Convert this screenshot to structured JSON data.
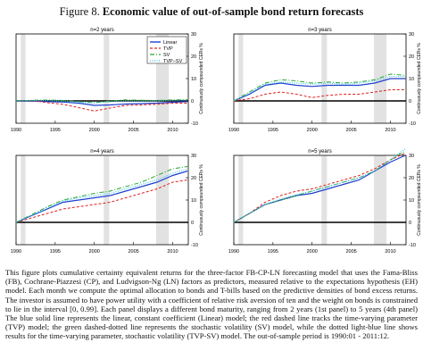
{
  "figure": {
    "label": "Figure 8.",
    "title": "Economic value of out-of-sample bond return forecasts"
  },
  "caption": "This figure plots cumulative certainty equivalent returns for the three-factor FB-CP-LN forecasting model that uses the Fama-Bliss (FB), Cochrane-Piazzesi (CP), and Ludvigson-Ng (LN) factors as predictors, measured relative to the expectations hypothesis (EH) model. Each month we compute the optimal allocation to bonds and T-bills based on the predictive densities of bond excess returns. The investor is assumed to have power utility with a coefficient of relative risk aversion of ten and the weight on bonds is constrained to lie in the interval [0, 0.99]. Each panel displays a different bond maturity, ranging from 2 years (1st panel) to 5 years (4th panel) The blue solid line represents the linear, constant coefficient (Linear) model; the red dashed line tracks the time-varying parameter (TVP) model; the green dashed-dotted line represents the stochastic volatility (SV) model, while the dotted light-blue line shows results for the time-varying parameter, stochastic volatility (TVP-SV) model. The out-of-sample period is 1990:01 - 2011:12.",
  "legend": [
    "Linear",
    "TVP",
    "SV",
    "TVP−SV"
  ],
  "colors": {
    "Linear": "#1f3fd0",
    "TVP": "#e0201e",
    "SV": "#2aa530",
    "TVP-SV": "#33c4e8",
    "recession": "#e2e2e2"
  },
  "chart_data": [
    {
      "type": "line",
      "title": "n=2 years",
      "ylabel": "Continuously compounded CERs %",
      "xlim": [
        1990,
        2012
      ],
      "ylim": [
        -10,
        30
      ],
      "xticks": [
        1990,
        1995,
        2000,
        2005,
        2010
      ],
      "xtick_labels": [
        "1990",
        "1995",
        "2000",
        "2005",
        "2010"
      ],
      "yticks": [
        -10,
        0,
        10,
        20,
        30
      ],
      "ytick_labels": [
        "-10",
        "0",
        "10",
        "20",
        "30"
      ],
      "recessions": [
        [
          1990.6,
          1991.2
        ],
        [
          2001.2,
          2001.9
        ],
        [
          2007.9,
          2009.5
        ]
      ],
      "x": [
        1990,
        1992,
        1994,
        1996,
        1998,
        2000,
        2002,
        2004,
        2006,
        2008,
        2010,
        2011.9
      ],
      "series": [
        {
          "name": "Linear",
          "values": [
            0,
            0,
            -0.3,
            -0.5,
            -1,
            -2,
            -1.8,
            -1.4,
            -1.2,
            -1,
            -0.6,
            -0.3
          ]
        },
        {
          "name": "TVP",
          "values": [
            0,
            0.2,
            -0.8,
            -1.5,
            -3,
            -4.5,
            -3.2,
            -2,
            -1.8,
            -1.5,
            -1,
            -1
          ]
        },
        {
          "name": "SV",
          "values": [
            0,
            0.3,
            0.4,
            0.2,
            -0.3,
            -0.8,
            0,
            0.5,
            0.3,
            0.2,
            0.5,
            0.5
          ]
        },
        {
          "name": "TVP-SV",
          "values": [
            0,
            0.2,
            0.2,
            -0.2,
            -0.5,
            -1,
            -0.4,
            0,
            -0.2,
            0,
            0.3,
            0.4
          ]
        }
      ]
    },
    {
      "type": "line",
      "title": "n=3 years",
      "ylabel": "Continuously compounded CERs %",
      "xlim": [
        1990,
        2012
      ],
      "ylim": [
        -10,
        30
      ],
      "xticks": [
        1990,
        1995,
        2000,
        2005,
        2010
      ],
      "xtick_labels": [
        "1990",
        "1995",
        "2000",
        "2005",
        "2010"
      ],
      "yticks": [
        -10,
        0,
        10,
        20,
        30
      ],
      "ytick_labels": [
        "-10",
        "0",
        "10",
        "20",
        "30"
      ],
      "recessions": [
        [
          1990.6,
          1991.2
        ],
        [
          2001.2,
          2001.9
        ],
        [
          2007.9,
          2009.5
        ]
      ],
      "x": [
        1990,
        1992,
        1994,
        1996,
        1998,
        2000,
        2002,
        2004,
        2006,
        2008,
        2010,
        2011.9
      ],
      "series": [
        {
          "name": "Linear",
          "values": [
            0,
            3,
            7,
            8,
            7,
            6.5,
            7,
            7,
            7,
            8,
            10,
            10
          ]
        },
        {
          "name": "TVP",
          "values": [
            0,
            1,
            3,
            4,
            3,
            1.5,
            2.5,
            3,
            3,
            4,
            5,
            5
          ]
        },
        {
          "name": "SV",
          "values": [
            0,
            4,
            8,
            9.5,
            9,
            8,
            8.5,
            8,
            8.5,
            9.5,
            12,
            11.5
          ]
        },
        {
          "name": "TVP-SV",
          "values": [
            0,
            3.5,
            7.5,
            8.5,
            8,
            7.5,
            8,
            7.5,
            8,
            9,
            11,
            11
          ]
        }
      ]
    },
    {
      "type": "line",
      "title": "n=4 years",
      "ylabel": "Continuously compounded CERs %",
      "xlim": [
        1990,
        2012
      ],
      "ylim": [
        -10,
        30
      ],
      "xticks": [
        1990,
        1995,
        2000,
        2005,
        2010
      ],
      "xtick_labels": [
        "1990",
        "1995",
        "2000",
        "2005",
        "2010"
      ],
      "yticks": [
        -10,
        0,
        10,
        20,
        30
      ],
      "ytick_labels": [
        "-10",
        "0",
        "10",
        "20",
        "30"
      ],
      "recessions": [
        [
          1990.6,
          1991.2
        ],
        [
          2001.2,
          2001.9
        ],
        [
          2007.9,
          2009.5
        ]
      ],
      "x": [
        1990,
        1992,
        1994,
        1996,
        1998,
        2000,
        2002,
        2004,
        2006,
        2008,
        2010,
        2011.9
      ],
      "series": [
        {
          "name": "Linear",
          "values": [
            0,
            3,
            6,
            9,
            10,
            11,
            12,
            14,
            16,
            18,
            21,
            23
          ]
        },
        {
          "name": "TVP",
          "values": [
            0,
            2,
            4,
            6,
            7,
            8,
            9,
            11,
            13,
            15,
            18,
            19
          ]
        },
        {
          "name": "SV",
          "values": [
            0,
            3.5,
            7,
            10,
            11.5,
            13,
            14,
            16,
            18,
            21,
            24,
            25
          ]
        },
        {
          "name": "TVP-SV",
          "values": [
            0,
            3,
            6.5,
            9.5,
            11,
            12,
            13,
            15,
            17,
            19,
            22,
            24
          ]
        }
      ]
    },
    {
      "type": "line",
      "title": "n=5 years",
      "ylabel": "Continuously compounded CERs %",
      "xlim": [
        1990,
        2012
      ],
      "ylim": [
        -10,
        30
      ],
      "xticks": [
        1990,
        1995,
        2000,
        2005,
        2010
      ],
      "xtick_labels": [
        "1990",
        "1995",
        "2000",
        "2005",
        "2010"
      ],
      "yticks": [
        -10,
        0,
        10,
        20,
        30
      ],
      "ytick_labels": [
        "-10",
        "0",
        "10",
        "20",
        "30"
      ],
      "recessions": [
        [
          1990.6,
          1991.2
        ],
        [
          2001.2,
          2001.9
        ],
        [
          2007.9,
          2009.5
        ]
      ],
      "x": [
        1990,
        1992,
        1994,
        1996,
        1998,
        2000,
        2002,
        2004,
        2006,
        2008,
        2010,
        2011.9
      ],
      "series": [
        {
          "name": "Linear",
          "values": [
            0,
            4,
            8,
            10,
            12,
            13,
            15,
            17,
            19,
            23,
            27,
            30
          ]
        },
        {
          "name": "TVP",
          "values": [
            0,
            4,
            9,
            12,
            14,
            15,
            17,
            19,
            21,
            24,
            28,
            31
          ]
        },
        {
          "name": "SV",
          "values": [
            0,
            4,
            8,
            10,
            12,
            14,
            16,
            18,
            20,
            23,
            28,
            32
          ]
        },
        {
          "name": "TVP-SV",
          "values": [
            0,
            4,
            8,
            10.5,
            12.5,
            14,
            16,
            18,
            20,
            23,
            28,
            33
          ]
        }
      ]
    }
  ]
}
